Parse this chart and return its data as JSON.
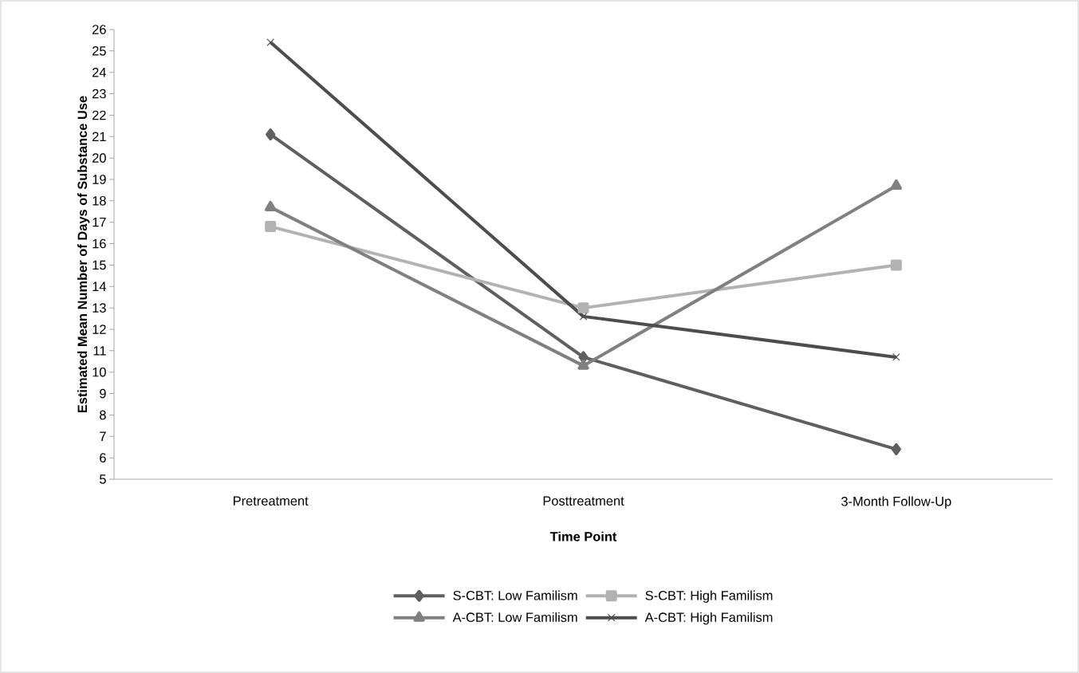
{
  "chart_data": {
    "type": "line",
    "xlabel": "Time Point",
    "ylabel": "Estimated Mean Number of Days of Substance Use",
    "categories": [
      "Pretreatment",
      "Posttreatment",
      "3-Month Follow-Up"
    ],
    "ylim": [
      5,
      26
    ],
    "yticks": [
      5,
      6,
      7,
      8,
      9,
      10,
      11,
      12,
      13,
      14,
      15,
      16,
      17,
      18,
      19,
      20,
      21,
      22,
      23,
      24,
      25,
      26
    ],
    "grid": false,
    "legend": "bottom",
    "line_style": "solid",
    "series": [
      {
        "name": "S-CBT: Low Familism",
        "color": "#5f5f5f",
        "marker": "diamond",
        "values": [
          21.1,
          10.7,
          6.4
        ]
      },
      {
        "name": "S-CBT: High Familism",
        "color": "#b2b2b2",
        "marker": "square",
        "values": [
          16.8,
          13.0,
          15.0
        ]
      },
      {
        "name": "A-CBT: Low Familism",
        "color": "#808080",
        "marker": "triangle",
        "values": [
          17.7,
          10.3,
          18.7
        ]
      },
      {
        "name": "A-CBT: High Familism",
        "color": "#4d4d4d",
        "marker": "cross",
        "values": [
          25.4,
          12.6,
          10.7
        ]
      }
    ]
  }
}
